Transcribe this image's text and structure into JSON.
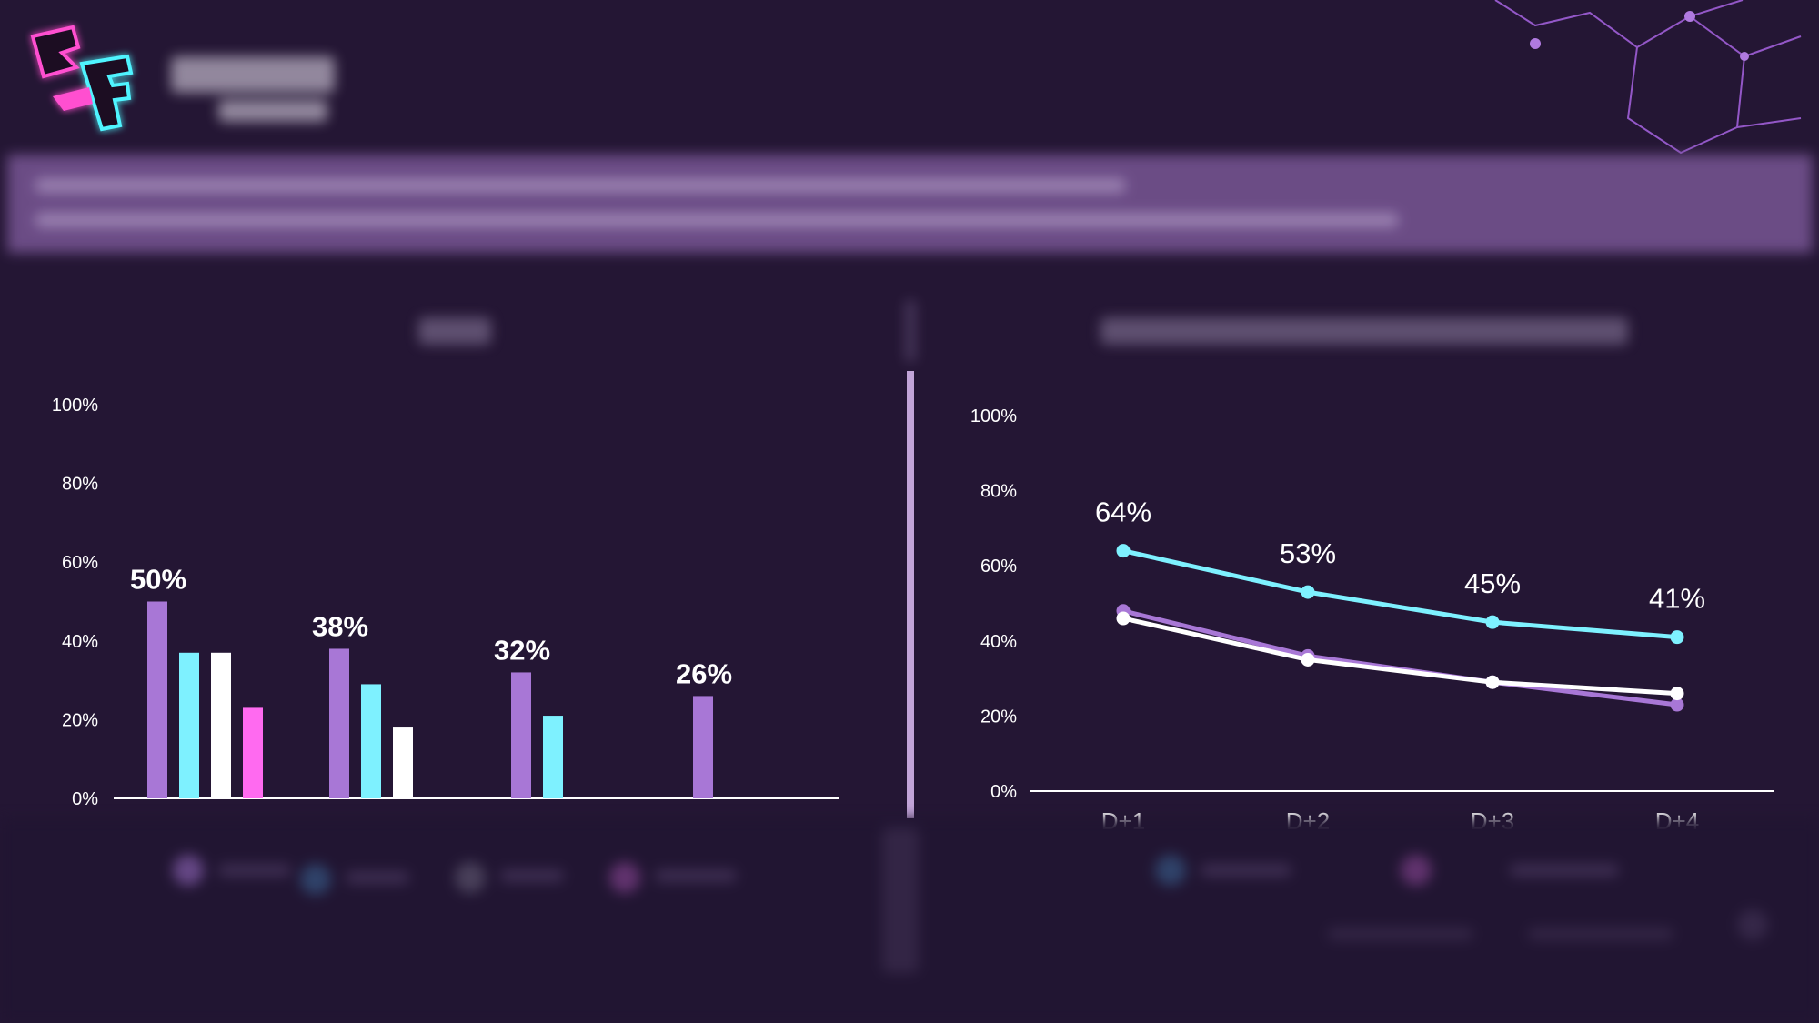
{
  "colors": {
    "purple": "#a877d6",
    "cyan": "#7ef1ff",
    "white": "#ffffff",
    "magenta": "#ff6af0",
    "background": "#241634"
  },
  "chart_data": [
    {
      "type": "bar",
      "title": "",
      "categories": [
        "",
        "",
        "",
        ""
      ],
      "ylim": [
        0,
        100
      ],
      "yticks": [
        "0%",
        "20%",
        "40%",
        "60%",
        "80%",
        "100%"
      ],
      "series": [
        {
          "name": "series-1",
          "color": "#a877d6",
          "values": [
            50,
            38,
            32,
            26
          ]
        },
        {
          "name": "series-2",
          "color": "#7ef1ff",
          "values": [
            37,
            29,
            21,
            null
          ]
        },
        {
          "name": "series-3",
          "color": "#ffffff",
          "values": [
            37,
            18,
            null,
            null
          ]
        },
        {
          "name": "series-4",
          "color": "#ff6af0",
          "values": [
            23,
            null,
            null,
            null
          ]
        }
      ],
      "data_labels": [
        "50%",
        "38%",
        "32%",
        "26%"
      ]
    },
    {
      "type": "line",
      "title": "",
      "categories": [
        "D+1",
        "D+2",
        "D+3",
        "D+4"
      ],
      "ylim": [
        0,
        100
      ],
      "yticks": [
        "0%",
        "20%",
        "40%",
        "60%",
        "80%",
        "100%"
      ],
      "series": [
        {
          "name": "series-1",
          "color": "#7ef1ff",
          "values": [
            64,
            53,
            45,
            41
          ]
        },
        {
          "name": "series-2",
          "color": "#a877d6",
          "values": [
            48,
            36,
            29,
            23
          ]
        },
        {
          "name": "series-3",
          "color": "#ffffff",
          "values": [
            46,
            35,
            29,
            26
          ]
        }
      ],
      "data_labels": [
        "64%",
        "53%",
        "45%",
        "41%"
      ]
    }
  ]
}
